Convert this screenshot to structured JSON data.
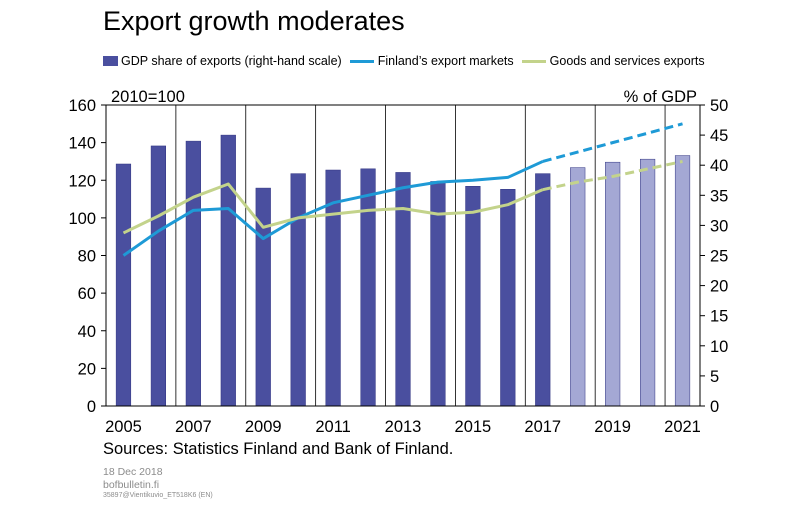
{
  "title": "Export growth moderates",
  "legend": [
    {
      "label": "GDP share of exports (right-hand scale)",
      "type": "bar",
      "color": "#4a4f9f"
    },
    {
      "label": "Finland’s export markets",
      "type": "line",
      "color": "#1e9ad6"
    },
    {
      "label": "Goods and services exports",
      "type": "line",
      "color": "#c3d38b"
    }
  ],
  "sources": "Sources: Statistics Finland and Bank of Finland.",
  "footer": {
    "date": "18 Dec 2018",
    "site": "bofbulletin.fi",
    "code": "35897@Vientikuvio_ET518K6 (EN)"
  },
  "chart_data": {
    "type": "bar+line",
    "x": [
      2005,
      2006,
      2007,
      2008,
      2009,
      2010,
      2011,
      2012,
      2013,
      2014,
      2015,
      2016,
      2017,
      2018,
      2019,
      2020,
      2021
    ],
    "x_tick_labels": [
      "2005",
      "2007",
      "2009",
      "2011",
      "2013",
      "2015",
      "2017",
      "2019",
      "2021"
    ],
    "left_axis": {
      "label": "2010=100",
      "ylim": [
        0,
        160
      ],
      "ticks": [
        "0",
        "20",
        "40",
        "60",
        "80",
        "100",
        "120",
        "140",
        "160"
      ]
    },
    "right_axis": {
      "label": "% of GDP",
      "ylim": [
        0,
        50
      ],
      "ticks": [
        "0",
        "5",
        "10",
        "15",
        "20",
        "25",
        "30",
        "35",
        "40",
        "45",
        "50"
      ]
    },
    "grid": "vertical",
    "forecast_from_index": 13,
    "bars": {
      "name": "GDP share of exports (right-hand scale)",
      "axis": "right",
      "color": "#4a4f9f",
      "forecast_color": "#a4a8d4",
      "values": [
        40.2,
        43.2,
        44.0,
        45.0,
        36.2,
        38.6,
        39.2,
        39.4,
        38.8,
        37.3,
        36.5,
        36.0,
        38.6,
        39.6,
        40.5,
        41.0,
        41.6
      ]
    },
    "lines": [
      {
        "name": "Finland’s export markets",
        "axis": "left",
        "color": "#1e9ad6",
        "values": [
          80.0,
          93.0,
          104.0,
          105.0,
          89.0,
          100.0,
          108.0,
          112.0,
          116.0,
          119.0,
          120.0,
          121.5,
          130.0,
          135.0,
          140.0,
          145.0,
          150.0
        ]
      },
      {
        "name": "Goods and services exports",
        "axis": "left",
        "color": "#c3d38b",
        "values": [
          92.0,
          101.0,
          111.0,
          118.0,
          95.0,
          100.0,
          102.0,
          104.0,
          105.0,
          102.0,
          103.0,
          107.0,
          115.0,
          119.0,
          122.0,
          126.0,
          130.0
        ]
      }
    ]
  }
}
